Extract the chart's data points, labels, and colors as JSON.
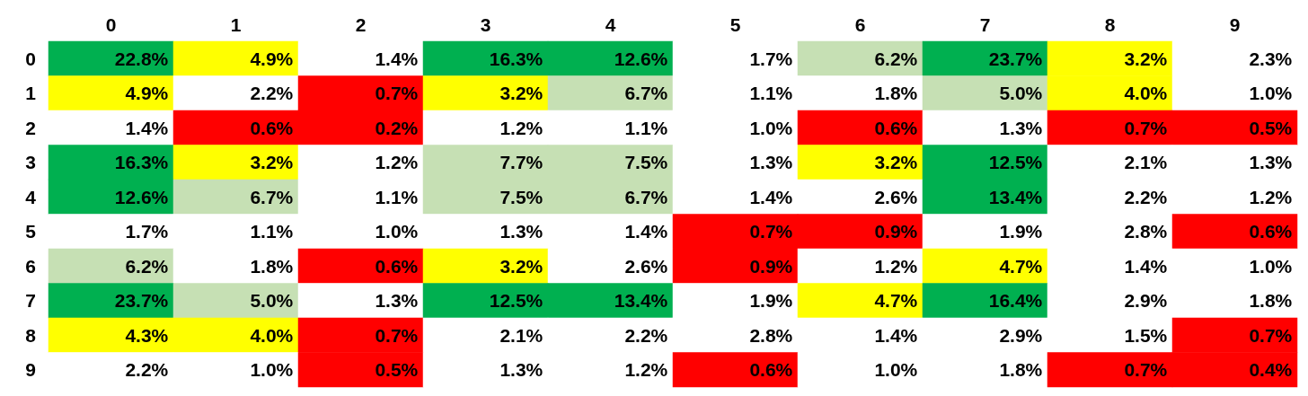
{
  "chart_data": {
    "type": "heatmap",
    "categories": [
      "0",
      "1",
      "2",
      "3",
      "4",
      "5",
      "6",
      "7",
      "8",
      "9"
    ],
    "y_categories": [
      "0",
      "1",
      "2",
      "3",
      "4",
      "5",
      "6",
      "7",
      "8",
      "9"
    ],
    "cells": [
      [
        22.8,
        4.9,
        1.4,
        16.3,
        12.6,
        1.7,
        6.2,
        23.7,
        3.2,
        2.3
      ],
      [
        4.9,
        2.2,
        0.7,
        3.2,
        6.7,
        1.1,
        1.8,
        5.0,
        4.0,
        1.0
      ],
      [
        1.4,
        0.6,
        0.2,
        1.2,
        1.1,
        1.0,
        0.6,
        1.3,
        0.7,
        0.5
      ],
      [
        16.3,
        3.2,
        1.2,
        7.7,
        7.5,
        1.3,
        3.2,
        12.5,
        2.1,
        1.3
      ],
      [
        12.6,
        6.7,
        1.1,
        7.5,
        6.7,
        1.4,
        2.6,
        13.4,
        2.2,
        1.2
      ],
      [
        1.7,
        1.1,
        1.0,
        1.3,
        1.4,
        0.7,
        0.9,
        1.9,
        2.8,
        0.6
      ],
      [
        6.2,
        1.8,
        0.6,
        3.2,
        2.6,
        0.9,
        1.2,
        4.7,
        1.4,
        1.0
      ],
      [
        23.7,
        5.0,
        1.3,
        12.5,
        13.4,
        1.9,
        4.7,
        16.4,
        2.9,
        1.8
      ],
      [
        4.3,
        4.0,
        0.7,
        2.1,
        2.2,
        2.8,
        1.4,
        2.9,
        1.5,
        0.7
      ],
      [
        2.2,
        1.0,
        0.5,
        1.3,
        1.2,
        0.6,
        1.0,
        1.8,
        0.7,
        0.4
      ]
    ],
    "cell_labels": [
      [
        "22.8%",
        "4.9%",
        "1.4%",
        "16.3%",
        "12.6%",
        "1.7%",
        "6.2%",
        "23.7%",
        "3.2%",
        "2.3%"
      ],
      [
        "4.9%",
        "2.2%",
        "0.7%",
        "3.2%",
        "6.7%",
        "1.1%",
        "1.8%",
        "5.0%",
        "4.0%",
        "1.0%"
      ],
      [
        "1.4%",
        "0.6%",
        "0.2%",
        "1.2%",
        "1.1%",
        "1.0%",
        "0.6%",
        "1.3%",
        "0.7%",
        "0.5%"
      ],
      [
        "16.3%",
        "3.2%",
        "1.2%",
        "7.7%",
        "7.5%",
        "1.3%",
        "3.2%",
        "12.5%",
        "2.1%",
        "1.3%"
      ],
      [
        "12.6%",
        "6.7%",
        "1.1%",
        "7.5%",
        "6.7%",
        "1.4%",
        "2.6%",
        "13.4%",
        "2.2%",
        "1.2%"
      ],
      [
        "1.7%",
        "1.1%",
        "1.0%",
        "1.3%",
        "1.4%",
        "0.7%",
        "0.9%",
        "1.9%",
        "2.8%",
        "0.6%"
      ],
      [
        "6.2%",
        "1.8%",
        "0.6%",
        "3.2%",
        "2.6%",
        "0.9%",
        "1.2%",
        "4.7%",
        "1.4%",
        "1.0%"
      ],
      [
        "23.7%",
        "5.0%",
        "1.3%",
        "12.5%",
        "13.4%",
        "1.9%",
        "4.7%",
        "16.4%",
        "2.9%",
        "1.8%"
      ],
      [
        "4.3%",
        "4.0%",
        "0.7%",
        "2.1%",
        "2.2%",
        "2.8%",
        "1.4%",
        "2.9%",
        "1.5%",
        "0.7%"
      ],
      [
        "2.2%",
        "1.0%",
        "0.5%",
        "1.3%",
        "1.2%",
        "0.6%",
        "1.0%",
        "1.8%",
        "0.7%",
        "0.4%"
      ]
    ],
    "colors": [
      [
        "#00b050",
        "#ffff00",
        "#ffffff",
        "#00b050",
        "#00b050",
        "#ffffff",
        "#c6e0b4",
        "#00b050",
        "#ffff00",
        "#ffffff"
      ],
      [
        "#ffff00",
        "#ffffff",
        "#ff0000",
        "#ffff00",
        "#c6e0b4",
        "#ffffff",
        "#ffffff",
        "#c6e0b4",
        "#ffff00",
        "#ffffff"
      ],
      [
        "#ffffff",
        "#ff0000",
        "#ff0000",
        "#ffffff",
        "#ffffff",
        "#ffffff",
        "#ff0000",
        "#ffffff",
        "#ff0000",
        "#ff0000"
      ],
      [
        "#00b050",
        "#ffff00",
        "#ffffff",
        "#c6e0b4",
        "#c6e0b4",
        "#ffffff",
        "#ffff00",
        "#00b050",
        "#ffffff",
        "#ffffff"
      ],
      [
        "#00b050",
        "#c6e0b4",
        "#ffffff",
        "#c6e0b4",
        "#c6e0b4",
        "#ffffff",
        "#ffffff",
        "#00b050",
        "#ffffff",
        "#ffffff"
      ],
      [
        "#ffffff",
        "#ffffff",
        "#ffffff",
        "#ffffff",
        "#ffffff",
        "#ff0000",
        "#ff0000",
        "#ffffff",
        "#ffffff",
        "#ff0000"
      ],
      [
        "#c6e0b4",
        "#ffffff",
        "#ff0000",
        "#ffff00",
        "#ffffff",
        "#ff0000",
        "#ffffff",
        "#ffff00",
        "#ffffff",
        "#ffffff"
      ],
      [
        "#00b050",
        "#c6e0b4",
        "#ffffff",
        "#00b050",
        "#00b050",
        "#ffffff",
        "#ffff00",
        "#00b050",
        "#ffffff",
        "#ffffff"
      ],
      [
        "#ffff00",
        "#ffff00",
        "#ff0000",
        "#ffffff",
        "#ffffff",
        "#ffffff",
        "#ffffff",
        "#ffffff",
        "#ffffff",
        "#ff0000"
      ],
      [
        "#ffffff",
        "#ffffff",
        "#ff0000",
        "#ffffff",
        "#ffffff",
        "#ff0000",
        "#ffffff",
        "#ffffff",
        "#ff0000",
        "#ff0000"
      ]
    ]
  }
}
